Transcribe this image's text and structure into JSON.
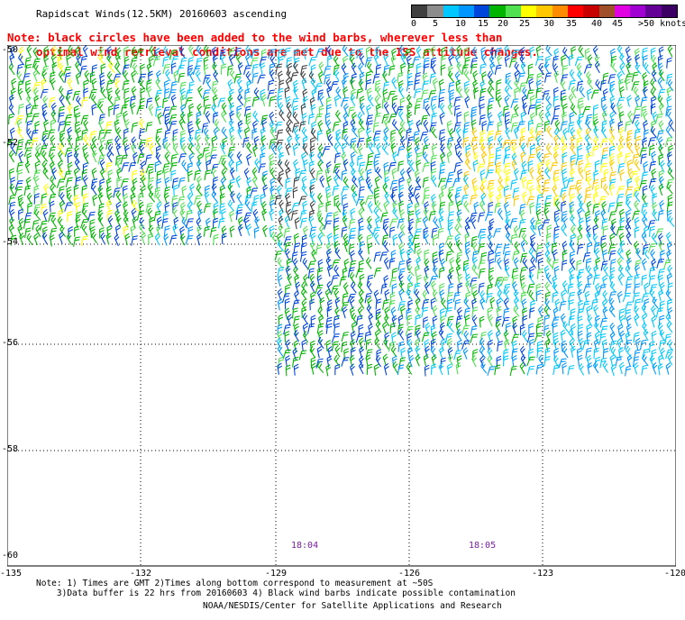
{
  "header": {
    "title": "Rapidscat Winds(12.5KM) 20160603 ascending"
  },
  "colorbar": {
    "colors": [
      "#404040",
      "#8c8c8c",
      "#00c8ff",
      "#0096ff",
      "#0046dc",
      "#00b400",
      "#50e050",
      "#ffff00",
      "#ffc800",
      "#ff8c00",
      "#ff0000",
      "#c80000",
      "#a05028",
      "#e100e1",
      "#a000d2",
      "#640096",
      "#3c0064"
    ],
    "labels": [
      "0",
      "5",
      "10",
      "15",
      "20",
      "25",
      "30",
      "35",
      "40",
      "45",
      ">50 knots"
    ]
  },
  "note": {
    "line1": "Note: black circles have been added to the wind barbs, wherever less than",
    "line2": "optimal wind retrieval conditions are met due to the ISS attitude changes."
  },
  "axes": {
    "lat_labels": [
      "-50",
      "-52",
      "-54",
      "-56",
      "-58",
      "-60"
    ],
    "lon_labels": [
      "-135",
      "-132",
      "-129",
      "-126",
      "-123",
      "-120"
    ]
  },
  "times": {
    "t1": "18:04",
    "t2": "18:05"
  },
  "footer": {
    "line1": "Note: 1) Times are GMT 2)Times along bottom correspond to measurement at ~50S",
    "line2": "    3)Data buffer is 22 hrs from 20160603 4) Black wind barbs indicate possible contamination",
    "credit": "NOAA/NESDIS/Center for Satellite Applications and Research"
  }
}
